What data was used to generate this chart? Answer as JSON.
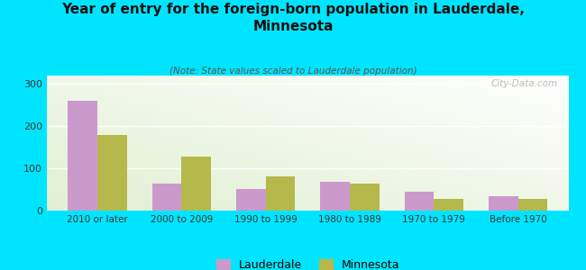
{
  "title": "Year of entry for the foreign-born population in Lauderdale,\nMinnesota",
  "subtitle": "(Note: State values scaled to Lauderdale population)",
  "categories": [
    "2010 or later",
    "2000 to 2009",
    "1990 to 1999",
    "1980 to 1989",
    "1970 to 1979",
    "Before 1970"
  ],
  "lauderdale_values": [
    260,
    65,
    52,
    68,
    45,
    35
  ],
  "minnesota_values": [
    180,
    128,
    82,
    65,
    27,
    27
  ],
  "lauderdale_color": "#cc99cc",
  "minnesota_color": "#b5b84a",
  "ylim": [
    0,
    320
  ],
  "yticks": [
    0,
    100,
    200,
    300
  ],
  "background_color": "#00e5ff",
  "bar_width": 0.35,
  "watermark": "City-Data.com"
}
